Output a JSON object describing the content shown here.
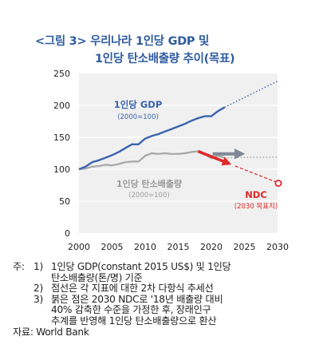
{
  "figure": {
    "title_line1": "<그림 3> 우리나라 1인당 GDP 및",
    "title_line2": "1인당 탄소배출량 추이(목표)"
  },
  "chart_data": {
    "type": "line",
    "xlim": [
      2000,
      2030
    ],
    "ylim": [
      0,
      250
    ],
    "x_ticks": [
      "2000",
      "2005",
      "2010",
      "2015",
      "2020",
      "2025",
      "2030"
    ],
    "y_ticks": [
      "0",
      "50",
      "100",
      "150",
      "200",
      "250"
    ],
    "series": [
      {
        "name": "1인당 GDP",
        "sublabel": "(2000=100)",
        "color": "#3b63ad",
        "x": [
          2000,
          2001,
          2002,
          2003,
          2004,
          2005,
          2006,
          2007,
          2008,
          2009,
          2010,
          2011,
          2012,
          2013,
          2014,
          2015,
          2016,
          2017,
          2018,
          2019,
          2020,
          2021,
          2022
        ],
        "values": [
          100,
          104,
          111,
          114,
          118,
          122,
          127,
          133,
          139,
          139,
          148,
          152,
          155,
          159,
          163,
          167,
          171,
          176,
          180,
          183,
          183,
          191,
          197
        ],
        "trend": {
          "x": [
            2022,
            2030
          ],
          "values": [
            197,
            238
          ]
        }
      },
      {
        "name": "1인당 탄소배출량",
        "sublabel": "(2000=100)",
        "color": "#a6a6a6",
        "x": [
          2000,
          2001,
          2002,
          2003,
          2004,
          2005,
          2006,
          2007,
          2008,
          2009,
          2010,
          2011,
          2012,
          2013,
          2014,
          2015,
          2016,
          2017,
          2018,
          2019,
          2020,
          2021,
          2022
        ],
        "values": [
          100,
          101,
          104,
          105,
          107,
          106,
          108,
          111,
          112,
          112,
          121,
          125,
          124,
          125,
          124,
          124,
          125,
          127,
          128,
          124,
          117,
          121,
          118
        ],
        "trend": {
          "x": [
            2022,
            2030
          ],
          "values": [
            118,
            119
          ]
        }
      }
    ],
    "ndc": {
      "label": "NDC",
      "sublabel": "(2030 목표치)",
      "color": "#e02a2a",
      "start": {
        "x": 2018,
        "y": 128
      },
      "target": {
        "x": 2030,
        "y": 78
      }
    },
    "colors": {
      "plot_bg": "#f0f0f0",
      "grid": "#ffffff",
      "gray_arrow": "#808a96"
    }
  },
  "notes": {
    "prefix": "주:",
    "items": [
      {
        "num": "1)",
        "lines": [
          "1인당 GDP(constant 2015 US$) 및 1인당",
          "탄소배출량(톤/명) 기준"
        ]
      },
      {
        "num": "2)",
        "lines": [
          "점선은 각 지표에 대한 2차 다항식 추세선"
        ]
      },
      {
        "num": "3)",
        "lines": [
          "붉은 점은 2030 NDC로 '18년 배출량 대비",
          "40% 감축한 수준을 가정한 후, 장래인구",
          "추계를 반영해 1인당 탄소배출량으로 환산"
        ]
      }
    ],
    "source": "자료: World Bank"
  }
}
